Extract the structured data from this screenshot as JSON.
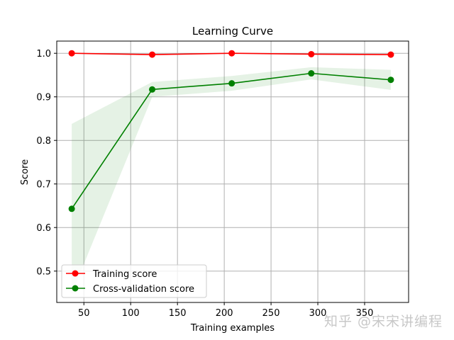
{
  "chart_data": {
    "type": "line",
    "title": "Learning Curve",
    "xlabel": "Training examples",
    "ylabel": "Score",
    "xlim": [
      21,
      397
    ],
    "ylim": [
      0.428,
      1.028
    ],
    "xticks": [
      50,
      100,
      150,
      200,
      250,
      300,
      350
    ],
    "yticks": [
      0.5,
      0.6,
      0.7,
      0.8,
      0.9,
      1.0
    ],
    "xtick_labels": [
      "50",
      "100",
      "150",
      "200",
      "250",
      "300",
      "350"
    ],
    "ytick_labels": [
      "0.5",
      "0.6",
      "0.7",
      "0.8",
      "0.9",
      "1.0"
    ],
    "grid": true,
    "legend_position": "lower left",
    "x": [
      37,
      123,
      208,
      293,
      378
    ],
    "series": [
      {
        "name": "Training score",
        "color": "#ff0000",
        "values": [
          1.0,
          0.997,
          1.0,
          0.998,
          0.997
        ],
        "band_upper": [
          1.0,
          0.999,
          1.0,
          1.0,
          0.999
        ],
        "band_lower": [
          1.0,
          0.995,
          1.0,
          0.996,
          0.995
        ]
      },
      {
        "name": "Cross-validation score",
        "color": "#008000",
        "values": [
          0.643,
          0.917,
          0.931,
          0.954,
          0.939
        ],
        "band_upper": [
          0.838,
          0.934,
          0.948,
          0.968,
          0.962
        ],
        "band_lower": [
          0.448,
          0.9,
          0.914,
          0.94,
          0.916
        ]
      }
    ]
  },
  "watermark": "知乎 @宋宋讲编程"
}
